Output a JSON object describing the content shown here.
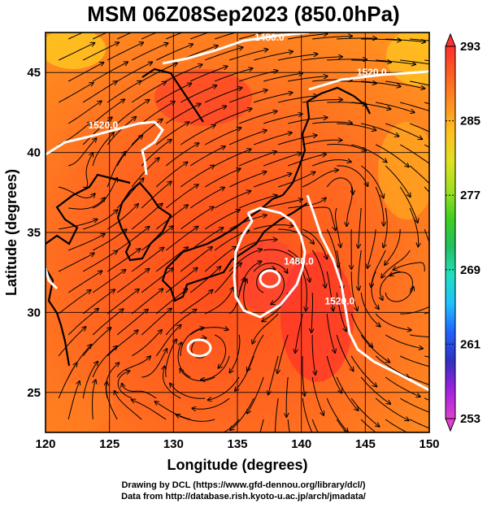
{
  "title": "MSM 06Z08Sep2023 (850.0hPa)",
  "axes": {
    "xlabel": "Longitude (degrees)",
    "ylabel": "Latitude  (degrees)",
    "xticks": [
      "120",
      "125",
      "130",
      "135",
      "140",
      "145",
      "150"
    ],
    "yticks": [
      "25",
      "30",
      "35",
      "40",
      "45"
    ],
    "xlim": [
      120,
      150
    ],
    "ylim": [
      22.5,
      47.5
    ]
  },
  "colorbar": {
    "labels": [
      "293",
      "285",
      "277",
      "269",
      "261",
      "253"
    ],
    "min": 253,
    "max": 293,
    "colors": [
      "#e040d0",
      "#a020e0",
      "#3030c0",
      "#2060ff",
      "#20c0ff",
      "#20e0c0",
      "#20c060",
      "#40d020",
      "#a0e020",
      "#e0e020",
      "#ffc020",
      "#ff9020",
      "#ff6020",
      "#ff3030"
    ]
  },
  "contours": [
    {
      "label": "1480.0",
      "lon": 137.5,
      "lat": 47.0
    },
    {
      "label": "1520.0",
      "lon": 145.5,
      "lat": 44.8
    },
    {
      "label": "1520.0",
      "lon": 124.5,
      "lat": 41.5
    },
    {
      "label": "1480.0",
      "lon": 139.8,
      "lat": 33.0
    },
    {
      "label": "1520.0",
      "lon": 143.0,
      "lat": 30.5
    }
  ],
  "credits": [
    "Drawing by DCL (https://www.gfd-dennou.org/library/dcl/)",
    "Data from http://database.rish.kyoto-u.ac.jp/arch/jmadata/"
  ]
}
